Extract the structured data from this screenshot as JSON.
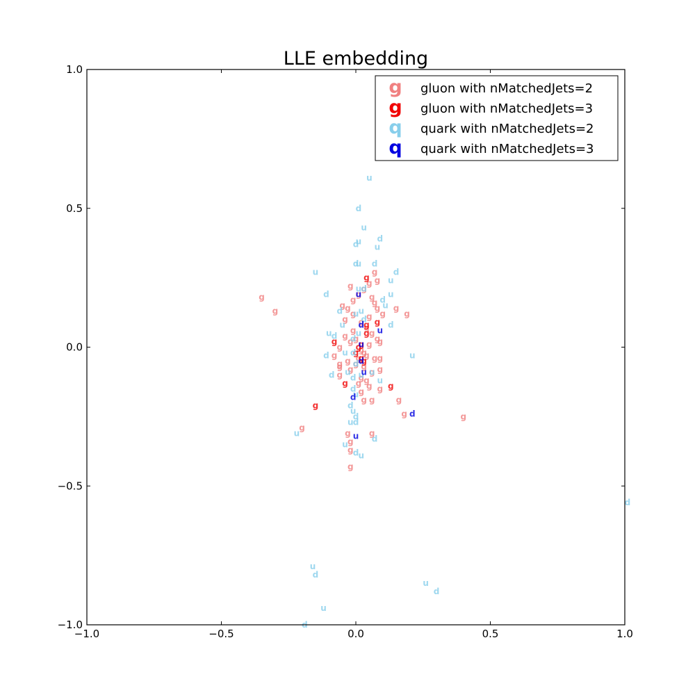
{
  "chart_data": {
    "type": "scatter",
    "title": "LLE embedding",
    "xlabel": "",
    "ylabel": "",
    "xlim": [
      -1.0,
      1.0
    ],
    "ylim": [
      -1.0,
      1.0
    ],
    "xticks": [
      -1.0,
      -0.5,
      0.0,
      0.5,
      1.0
    ],
    "yticks": [
      -1.0,
      -0.5,
      0.0,
      0.5,
      1.0
    ],
    "xtick_labels": [
      "−1.0",
      "−0.5",
      "0.0",
      "0.5",
      "1.0"
    ],
    "ytick_labels": [
      "−1.0",
      "−0.5",
      "0.0",
      "0.5",
      "1.0"
    ],
    "grid": false,
    "legend_position": "top-right",
    "series": [
      {
        "name": "gluon with nMatchedJets=2",
        "legend_glyph": "g",
        "color": "#f08080",
        "marker_text": "g",
        "points": [
          [
            -0.35,
            0.18
          ],
          [
            -0.3,
            0.13
          ],
          [
            -0.2,
            -0.29
          ],
          [
            -0.02,
            0.22
          ],
          [
            -0.05,
            0.15
          ],
          [
            -0.03,
            0.14
          ],
          [
            -0.01,
            0.17
          ],
          [
            0.01,
            0.19
          ],
          [
            0.03,
            0.21
          ],
          [
            0.05,
            0.23
          ],
          [
            0.07,
            0.27
          ],
          [
            0.08,
            0.24
          ],
          [
            0.06,
            0.18
          ],
          [
            0.07,
            0.16
          ],
          [
            0.08,
            0.14
          ],
          [
            0.1,
            0.12
          ],
          [
            0.15,
            0.14
          ],
          [
            0.19,
            0.12
          ],
          [
            -0.04,
            0.1
          ],
          [
            -0.01,
            0.12
          ],
          [
            0.02,
            0.09
          ],
          [
            0.04,
            0.07
          ],
          [
            0.06,
            0.05
          ],
          [
            0.08,
            0.03
          ],
          [
            0.09,
            0.02
          ],
          [
            -0.04,
            0.04
          ],
          [
            -0.06,
            0.0
          ],
          [
            -0.02,
            0.02
          ],
          [
            0.0,
            0.03
          ],
          [
            0.02,
            -0.01
          ],
          [
            0.05,
            0.01
          ],
          [
            -0.08,
            -0.03
          ],
          [
            -0.06,
            -0.06
          ],
          [
            -0.03,
            -0.05
          ],
          [
            0.01,
            -0.04
          ],
          [
            0.04,
            -0.03
          ],
          [
            0.07,
            -0.04
          ],
          [
            0.09,
            -0.04
          ],
          [
            -0.06,
            -0.07
          ],
          [
            -0.02,
            -0.08
          ],
          [
            0.03,
            -0.07
          ],
          [
            0.06,
            -0.09
          ],
          [
            0.09,
            -0.08
          ],
          [
            -0.06,
            -0.1
          ],
          [
            0.02,
            -0.11
          ],
          [
            0.04,
            -0.12
          ],
          [
            0.01,
            -0.13
          ],
          [
            0.05,
            -0.14
          ],
          [
            0.09,
            -0.15
          ],
          [
            0.02,
            -0.16
          ],
          [
            0.03,
            -0.19
          ],
          [
            0.06,
            -0.19
          ],
          [
            0.16,
            -0.19
          ],
          [
            0.18,
            -0.24
          ],
          [
            0.4,
            -0.25
          ],
          [
            -0.03,
            -0.31
          ],
          [
            0.06,
            -0.31
          ],
          [
            -0.02,
            -0.34
          ],
          [
            -0.02,
            -0.37
          ],
          [
            -0.02,
            -0.43
          ],
          [
            0.0,
            -0.06
          ],
          [
            0.03,
            -0.02
          ],
          [
            -0.01,
            0.06
          ],
          [
            0.05,
            0.11
          ]
        ]
      },
      {
        "name": "gluon with nMatchedJets=3",
        "legend_glyph": "g",
        "color": "#f00000",
        "marker_text": "g",
        "points": [
          [
            0.04,
            0.25
          ],
          [
            0.08,
            0.09
          ],
          [
            0.04,
            0.08
          ],
          [
            -0.08,
            0.02
          ],
          [
            0.01,
            0.0
          ],
          [
            0.02,
            0.01
          ],
          [
            0.0,
            -0.02
          ],
          [
            0.03,
            -0.05
          ],
          [
            0.02,
            -0.04
          ],
          [
            -0.04,
            -0.13
          ],
          [
            0.13,
            -0.14
          ],
          [
            -0.15,
            -0.21
          ],
          [
            0.04,
            0.05
          ]
        ]
      },
      {
        "name": "quark with nMatchedJets=2",
        "legend_glyph": "q",
        "color": "#87ceeb",
        "marker_text_cycle": [
          "u",
          "d"
        ],
        "points": [
          [
            0.05,
            0.61
          ],
          [
            0.01,
            0.5
          ],
          [
            0.03,
            0.43
          ],
          [
            0.09,
            0.39
          ],
          [
            0.01,
            0.38
          ],
          [
            0.0,
            0.37
          ],
          [
            0.08,
            0.36
          ],
          [
            0.0,
            0.3
          ],
          [
            0.01,
            0.3
          ],
          [
            0.07,
            0.3
          ],
          [
            -0.15,
            0.27
          ],
          [
            0.15,
            0.27
          ],
          [
            0.13,
            0.24
          ],
          [
            -0.11,
            0.19
          ],
          [
            0.01,
            0.21
          ],
          [
            0.03,
            0.21
          ],
          [
            0.13,
            0.19
          ],
          [
            0.1,
            0.17
          ],
          [
            0.11,
            0.15
          ],
          [
            -0.06,
            0.13
          ],
          [
            0.0,
            0.12
          ],
          [
            0.03,
            0.1
          ],
          [
            -0.05,
            0.08
          ],
          [
            0.13,
            0.08
          ],
          [
            -0.1,
            0.05
          ],
          [
            -0.08,
            0.04
          ],
          [
            0.01,
            0.05
          ],
          [
            -0.01,
            0.03
          ],
          [
            -0.04,
            -0.02
          ],
          [
            -0.11,
            -0.03
          ],
          [
            0.21,
            -0.03
          ],
          [
            0.0,
            -0.06
          ],
          [
            -0.03,
            -0.09
          ],
          [
            -0.09,
            -0.1
          ],
          [
            0.06,
            -0.09
          ],
          [
            -0.01,
            -0.11
          ],
          [
            0.09,
            -0.12
          ],
          [
            -0.01,
            -0.15
          ],
          [
            0.0,
            -0.17
          ],
          [
            -0.02,
            -0.21
          ],
          [
            -0.01,
            -0.23
          ],
          [
            0.0,
            -0.25
          ],
          [
            -0.02,
            -0.27
          ],
          [
            0.0,
            -0.27
          ],
          [
            -0.22,
            -0.31
          ],
          [
            0.07,
            -0.33
          ],
          [
            -0.04,
            -0.35
          ],
          [
            0.0,
            -0.38
          ],
          [
            0.02,
            -0.39
          ],
          [
            1.01,
            -0.56
          ],
          [
            -0.16,
            -0.79
          ],
          [
            -0.15,
            -0.82
          ],
          [
            0.26,
            -0.85
          ],
          [
            0.3,
            -0.88
          ],
          [
            -0.12,
            -0.94
          ],
          [
            -0.19,
            -1.0
          ],
          [
            0.02,
            0.13
          ],
          [
            -0.01,
            -0.02
          ],
          [
            0.02,
            -0.1
          ]
        ]
      },
      {
        "name": "quark with nMatchedJets=3",
        "legend_glyph": "q",
        "color": "#0000e0",
        "marker_text_cycle": [
          "u",
          "d"
        ],
        "points": [
          [
            0.01,
            0.19
          ],
          [
            0.02,
            0.08
          ],
          [
            0.09,
            0.06
          ],
          [
            0.02,
            -0.05
          ],
          [
            0.03,
            -0.09
          ],
          [
            -0.01,
            -0.18
          ],
          [
            0.0,
            -0.32
          ],
          [
            0.21,
            -0.24
          ],
          [
            0.02,
            0.01
          ]
        ]
      }
    ]
  }
}
